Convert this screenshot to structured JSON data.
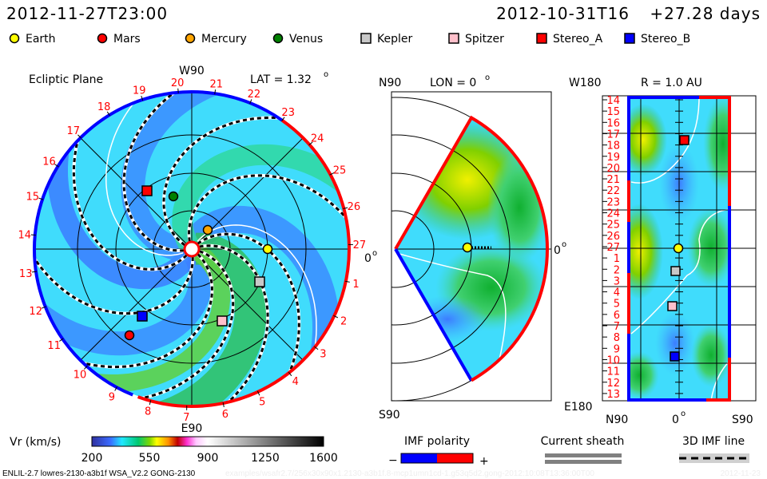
{
  "header": {
    "current_time": "2012-11-27T23:00",
    "run_start": "2012-10-31T16",
    "elapsed": "+27.28 days"
  },
  "legend": [
    {
      "label": "Earth",
      "color": "#ffff00",
      "shape": "circle"
    },
    {
      "label": "Mars",
      "color": "#ff0000",
      "shape": "circle"
    },
    {
      "label": "Mercury",
      "color": "#ffa500",
      "shape": "circle"
    },
    {
      "label": "Venus",
      "color": "#008000",
      "shape": "circle"
    },
    {
      "label": "Kepler",
      "color": "#c8c8c8",
      "shape": "square"
    },
    {
      "label": "Spitzer",
      "color": "#ffc0cb",
      "shape": "square"
    },
    {
      "label": "Stereo_A",
      "color": "#ff0000",
      "shape": "square"
    },
    {
      "label": "Stereo_B",
      "color": "#0000ff",
      "shape": "square"
    }
  ],
  "ecliptic": {
    "title": "Ecliptic Plane",
    "lat_label": "LAT = 1.32",
    "degree_mark": "o",
    "top_label": "W90",
    "bottom_label": "E90",
    "right_label": "0",
    "day_labels": [
      "1",
      "2",
      "3",
      "4",
      "5",
      "6",
      "7",
      "8",
      "9",
      "10",
      "11",
      "12",
      "13",
      "14",
      "15",
      "16",
      "17",
      "18",
      "19",
      "20",
      "21",
      "22",
      "23",
      "24",
      "25",
      "26",
      "27"
    ]
  },
  "meridional": {
    "top_label": "N90",
    "bottom_label": "S90",
    "lon_label": "LON = 0",
    "right_label": "0"
  },
  "radial": {
    "title": "R = 1.0 AU",
    "top_label": "W180",
    "bottom_label": "E180",
    "x_labels": [
      "N90",
      "0",
      "S90"
    ],
    "row_labels": [
      "14",
      "15",
      "16",
      "17",
      "18",
      "19",
      "20",
      "21",
      "22",
      "23",
      "24",
      "25",
      "26",
      "27",
      "1",
      "2",
      "3",
      "4",
      "5",
      "6",
      "7",
      "8",
      "9",
      "10",
      "11",
      "12",
      "13"
    ]
  },
  "colorbar": {
    "label": "Vr (km/s)",
    "ticks": [
      "200",
      "550",
      "900",
      "1250",
      "1600"
    ],
    "range": [
      200,
      1600
    ]
  },
  "imf_polarity": {
    "label": "IMF polarity",
    "minus": "−",
    "plus": "+",
    "neg_color": "#0000ff",
    "pos_color": "#ff0000"
  },
  "current_sheath": {
    "label": "Current sheath"
  },
  "imf_line": {
    "label": "3D IMF line"
  },
  "footer": {
    "model_info": "ENLIL-2.7 lowres-2130-a3b1f WSA_V2.2 GONG-2130",
    "path_info": "examples/wsafr2.7/256x30x90x1.2130-a3b1f.8-mcp1umn1cd-1.g53q5d2.gong-2012:10:08T13:36:00T00",
    "date_info": "2012-11-23"
  }
}
